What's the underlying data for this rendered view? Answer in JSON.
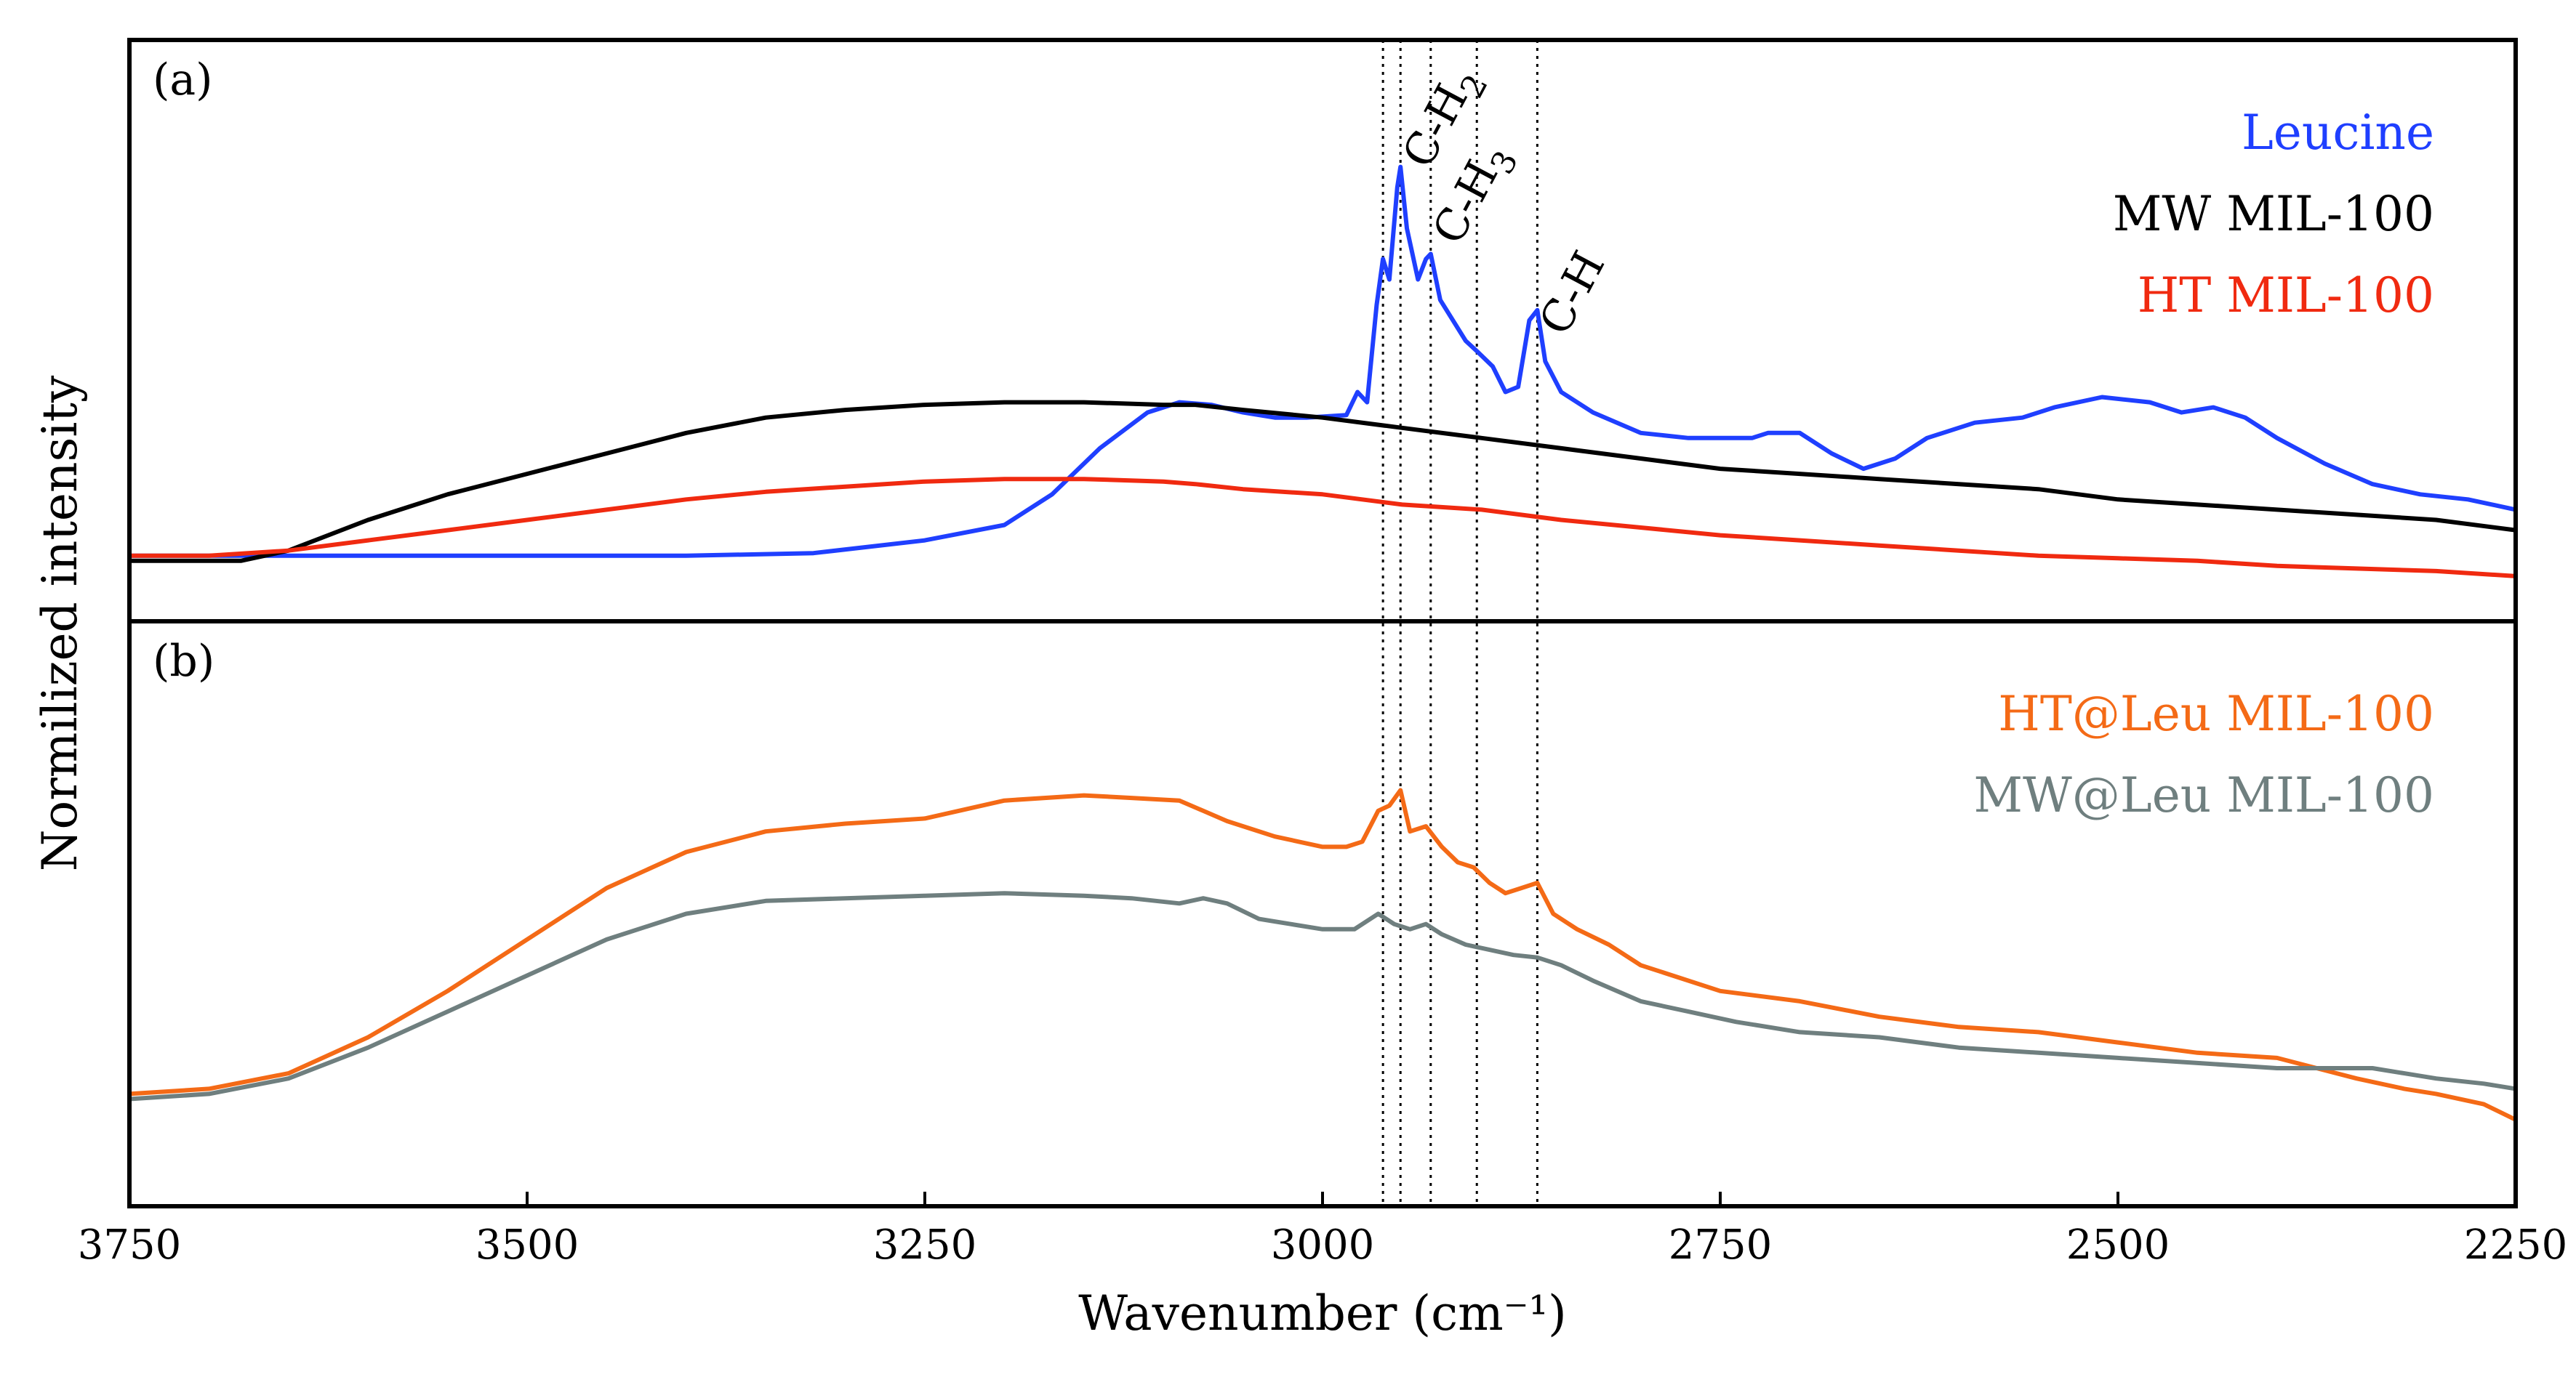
{
  "chart_data": {
    "type": "line",
    "xlabel": "Wavenumber (cm⁻¹)",
    "ylabel": "Normilized intensity",
    "xlim": [
      3750,
      2250
    ],
    "x_reversed": true,
    "x_ticks": [
      3750,
      3500,
      3250,
      3000,
      2750,
      2500,
      2250
    ],
    "x_tick_labels": [
      "3750",
      "3500",
      "3250",
      "3000",
      "2750",
      "2500",
      "2250"
    ],
    "reference_lines": [
      2962,
      2951,
      2932,
      2903,
      2865
    ],
    "annotations": [
      {
        "text": "C-H",
        "sub": "2",
        "x": 2951
      },
      {
        "text": "C-H",
        "sub": "3",
        "x": 2932
      },
      {
        "text": "C-H",
        "sub": "",
        "x": 2865
      }
    ],
    "panels": [
      {
        "label": "(a)",
        "ylim": [
          0,
          1
        ],
        "legend_position": "top-right",
        "series": [
          {
            "name": "Leucine",
            "color": "#1f3fff",
            "points": [
              [
                3750,
                0.06
              ],
              [
                3600,
                0.06
              ],
              [
                3400,
                0.06
              ],
              [
                3320,
                0.065
              ],
              [
                3250,
                0.09
              ],
              [
                3200,
                0.12
              ],
              [
                3170,
                0.18
              ],
              [
                3140,
                0.27
              ],
              [
                3110,
                0.34
              ],
              [
                3090,
                0.36
              ],
              [
                3070,
                0.355
              ],
              [
                3050,
                0.34
              ],
              [
                3030,
                0.33
              ],
              [
                3010,
                0.33
              ],
              [
                2985,
                0.335
              ],
              [
                2978,
                0.38
              ],
              [
                2972,
                0.36
              ],
              [
                2966,
                0.55
              ],
              [
                2962,
                0.64
              ],
              [
                2958,
                0.6
              ],
              [
                2953,
                0.78
              ],
              [
                2951,
                0.82
              ],
              [
                2947,
                0.7
              ],
              [
                2940,
                0.6
              ],
              [
                2935,
                0.64
              ],
              [
                2932,
                0.65
              ],
              [
                2926,
                0.56
              ],
              [
                2918,
                0.52
              ],
              [
                2910,
                0.48
              ],
              [
                2903,
                0.46
              ],
              [
                2893,
                0.43
              ],
              [
                2885,
                0.38
              ],
              [
                2877,
                0.39
              ],
              [
                2870,
                0.52
              ],
              [
                2865,
                0.54
              ],
              [
                2860,
                0.44
              ],
              [
                2850,
                0.38
              ],
              [
                2830,
                0.34
              ],
              [
                2800,
                0.3
              ],
              [
                2770,
                0.29
              ],
              [
                2750,
                0.29
              ],
              [
                2730,
                0.29
              ],
              [
                2720,
                0.3
              ],
              [
                2700,
                0.3
              ],
              [
                2680,
                0.26
              ],
              [
                2660,
                0.23
              ],
              [
                2640,
                0.25
              ],
              [
                2620,
                0.29
              ],
              [
                2590,
                0.32
              ],
              [
                2560,
                0.33
              ],
              [
                2540,
                0.35
              ],
              [
                2510,
                0.37
              ],
              [
                2480,
                0.36
              ],
              [
                2460,
                0.34
              ],
              [
                2440,
                0.35
              ],
              [
                2420,
                0.33
              ],
              [
                2400,
                0.29
              ],
              [
                2370,
                0.24
              ],
              [
                2340,
                0.2
              ],
              [
                2310,
                0.18
              ],
              [
                2280,
                0.17
              ],
              [
                2250,
                0.15
              ]
            ]
          },
          {
            "name": "MW MIL-100",
            "color": "#000000",
            "points": [
              [
                3750,
                0.05
              ],
              [
                3700,
                0.05
              ],
              [
                3680,
                0.05
              ],
              [
                3650,
                0.07
              ],
              [
                3600,
                0.13
              ],
              [
                3550,
                0.18
              ],
              [
                3500,
                0.22
              ],
              [
                3450,
                0.26
              ],
              [
                3400,
                0.3
              ],
              [
                3350,
                0.33
              ],
              [
                3300,
                0.345
              ],
              [
                3250,
                0.355
              ],
              [
                3200,
                0.36
              ],
              [
                3150,
                0.36
              ],
              [
                3100,
                0.355
              ],
              [
                3080,
                0.355
              ],
              [
                3050,
                0.345
              ],
              [
                3000,
                0.33
              ],
              [
                2950,
                0.31
              ],
              [
                2900,
                0.29
              ],
              [
                2850,
                0.27
              ],
              [
                2800,
                0.25
              ],
              [
                2750,
                0.23
              ],
              [
                2700,
                0.22
              ],
              [
                2650,
                0.21
              ],
              [
                2600,
                0.2
              ],
              [
                2550,
                0.19
              ],
              [
                2500,
                0.17
              ],
              [
                2450,
                0.16
              ],
              [
                2400,
                0.15
              ],
              [
                2350,
                0.14
              ],
              [
                2300,
                0.13
              ],
              [
                2250,
                0.11
              ]
            ]
          },
          {
            "name": "HT MIL-100",
            "color": "#f02a10",
            "points": [
              [
                3750,
                0.06
              ],
              [
                3700,
                0.06
              ],
              [
                3650,
                0.07
              ],
              [
                3600,
                0.09
              ],
              [
                3550,
                0.11
              ],
              [
                3500,
                0.13
              ],
              [
                3450,
                0.15
              ],
              [
                3400,
                0.17
              ],
              [
                3350,
                0.185
              ],
              [
                3300,
                0.195
              ],
              [
                3250,
                0.205
              ],
              [
                3200,
                0.21
              ],
              [
                3150,
                0.21
              ],
              [
                3100,
                0.205
              ],
              [
                3080,
                0.2
              ],
              [
                3050,
                0.19
              ],
              [
                3000,
                0.18
              ],
              [
                2950,
                0.16
              ],
              [
                2900,
                0.15
              ],
              [
                2850,
                0.13
              ],
              [
                2800,
                0.115
              ],
              [
                2750,
                0.1
              ],
              [
                2700,
                0.09
              ],
              [
                2650,
                0.08
              ],
              [
                2600,
                0.07
              ],
              [
                2550,
                0.06
              ],
              [
                2500,
                0.055
              ],
              [
                2450,
                0.05
              ],
              [
                2400,
                0.04
              ],
              [
                2350,
                0.035
              ],
              [
                2300,
                0.03
              ],
              [
                2250,
                0.02
              ]
            ]
          }
        ]
      },
      {
        "label": "(b)",
        "ylim": [
          0,
          1
        ],
        "legend_position": "top-right",
        "series": [
          {
            "name": "HT@Leu MIL-100",
            "color": "#f46a16",
            "points": [
              [
                3750,
                0.15
              ],
              [
                3700,
                0.16
              ],
              [
                3650,
                0.19
              ],
              [
                3600,
                0.26
              ],
              [
                3550,
                0.35
              ],
              [
                3500,
                0.45
              ],
              [
                3450,
                0.55
              ],
              [
                3400,
                0.62
              ],
              [
                3350,
                0.66
              ],
              [
                3300,
                0.675
              ],
              [
                3250,
                0.685
              ],
              [
                3200,
                0.72
              ],
              [
                3150,
                0.73
              ],
              [
                3120,
                0.725
              ],
              [
                3090,
                0.72
              ],
              [
                3060,
                0.68
              ],
              [
                3030,
                0.65
              ],
              [
                3000,
                0.63
              ],
              [
                2985,
                0.63
              ],
              [
                2975,
                0.64
              ],
              [
                2965,
                0.7
              ],
              [
                2958,
                0.71
              ],
              [
                2951,
                0.74
              ],
              [
                2945,
                0.66
              ],
              [
                2935,
                0.67
              ],
              [
                2925,
                0.63
              ],
              [
                2915,
                0.6
              ],
              [
                2905,
                0.59
              ],
              [
                2895,
                0.56
              ],
              [
                2885,
                0.54
              ],
              [
                2875,
                0.55
              ],
              [
                2865,
                0.56
              ],
              [
                2855,
                0.5
              ],
              [
                2840,
                0.47
              ],
              [
                2820,
                0.44
              ],
              [
                2800,
                0.4
              ],
              [
                2780,
                0.38
              ],
              [
                2750,
                0.35
              ],
              [
                2700,
                0.33
              ],
              [
                2650,
                0.3
              ],
              [
                2600,
                0.28
              ],
              [
                2550,
                0.27
              ],
              [
                2500,
                0.25
              ],
              [
                2450,
                0.23
              ],
              [
                2400,
                0.22
              ],
              [
                2350,
                0.18
              ],
              [
                2320,
                0.16
              ],
              [
                2300,
                0.15
              ],
              [
                2270,
                0.13
              ],
              [
                2250,
                0.1
              ]
            ]
          },
          {
            "name": "MW@Leu MIL-100",
            "color": "#6f7f7f",
            "points": [
              [
                3750,
                0.14
              ],
              [
                3700,
                0.15
              ],
              [
                3650,
                0.18
              ],
              [
                3600,
                0.24
              ],
              [
                3550,
                0.31
              ],
              [
                3500,
                0.38
              ],
              [
                3450,
                0.45
              ],
              [
                3400,
                0.5
              ],
              [
                3350,
                0.525
              ],
              [
                3300,
                0.53
              ],
              [
                3250,
                0.535
              ],
              [
                3200,
                0.54
              ],
              [
                3150,
                0.535
              ],
              [
                3120,
                0.53
              ],
              [
                3090,
                0.52
              ],
              [
                3075,
                0.53
              ],
              [
                3060,
                0.52
              ],
              [
                3040,
                0.49
              ],
              [
                3020,
                0.48
              ],
              [
                3000,
                0.47
              ],
              [
                2980,
                0.47
              ],
              [
                2965,
                0.5
              ],
              [
                2955,
                0.48
              ],
              [
                2945,
                0.47
              ],
              [
                2935,
                0.48
              ],
              [
                2925,
                0.46
              ],
              [
                2910,
                0.44
              ],
              [
                2895,
                0.43
              ],
              [
                2880,
                0.42
              ],
              [
                2865,
                0.415
              ],
              [
                2850,
                0.4
              ],
              [
                2830,
                0.37
              ],
              [
                2800,
                0.33
              ],
              [
                2770,
                0.31
              ],
              [
                2740,
                0.29
              ],
              [
                2700,
                0.27
              ],
              [
                2650,
                0.26
              ],
              [
                2600,
                0.24
              ],
              [
                2550,
                0.23
              ],
              [
                2500,
                0.22
              ],
              [
                2450,
                0.21
              ],
              [
                2400,
                0.2
              ],
              [
                2360,
                0.2
              ],
              [
                2340,
                0.2
              ],
              [
                2320,
                0.19
              ],
              [
                2300,
                0.18
              ],
              [
                2270,
                0.17
              ],
              [
                2250,
                0.16
              ]
            ]
          }
        ]
      }
    ]
  }
}
